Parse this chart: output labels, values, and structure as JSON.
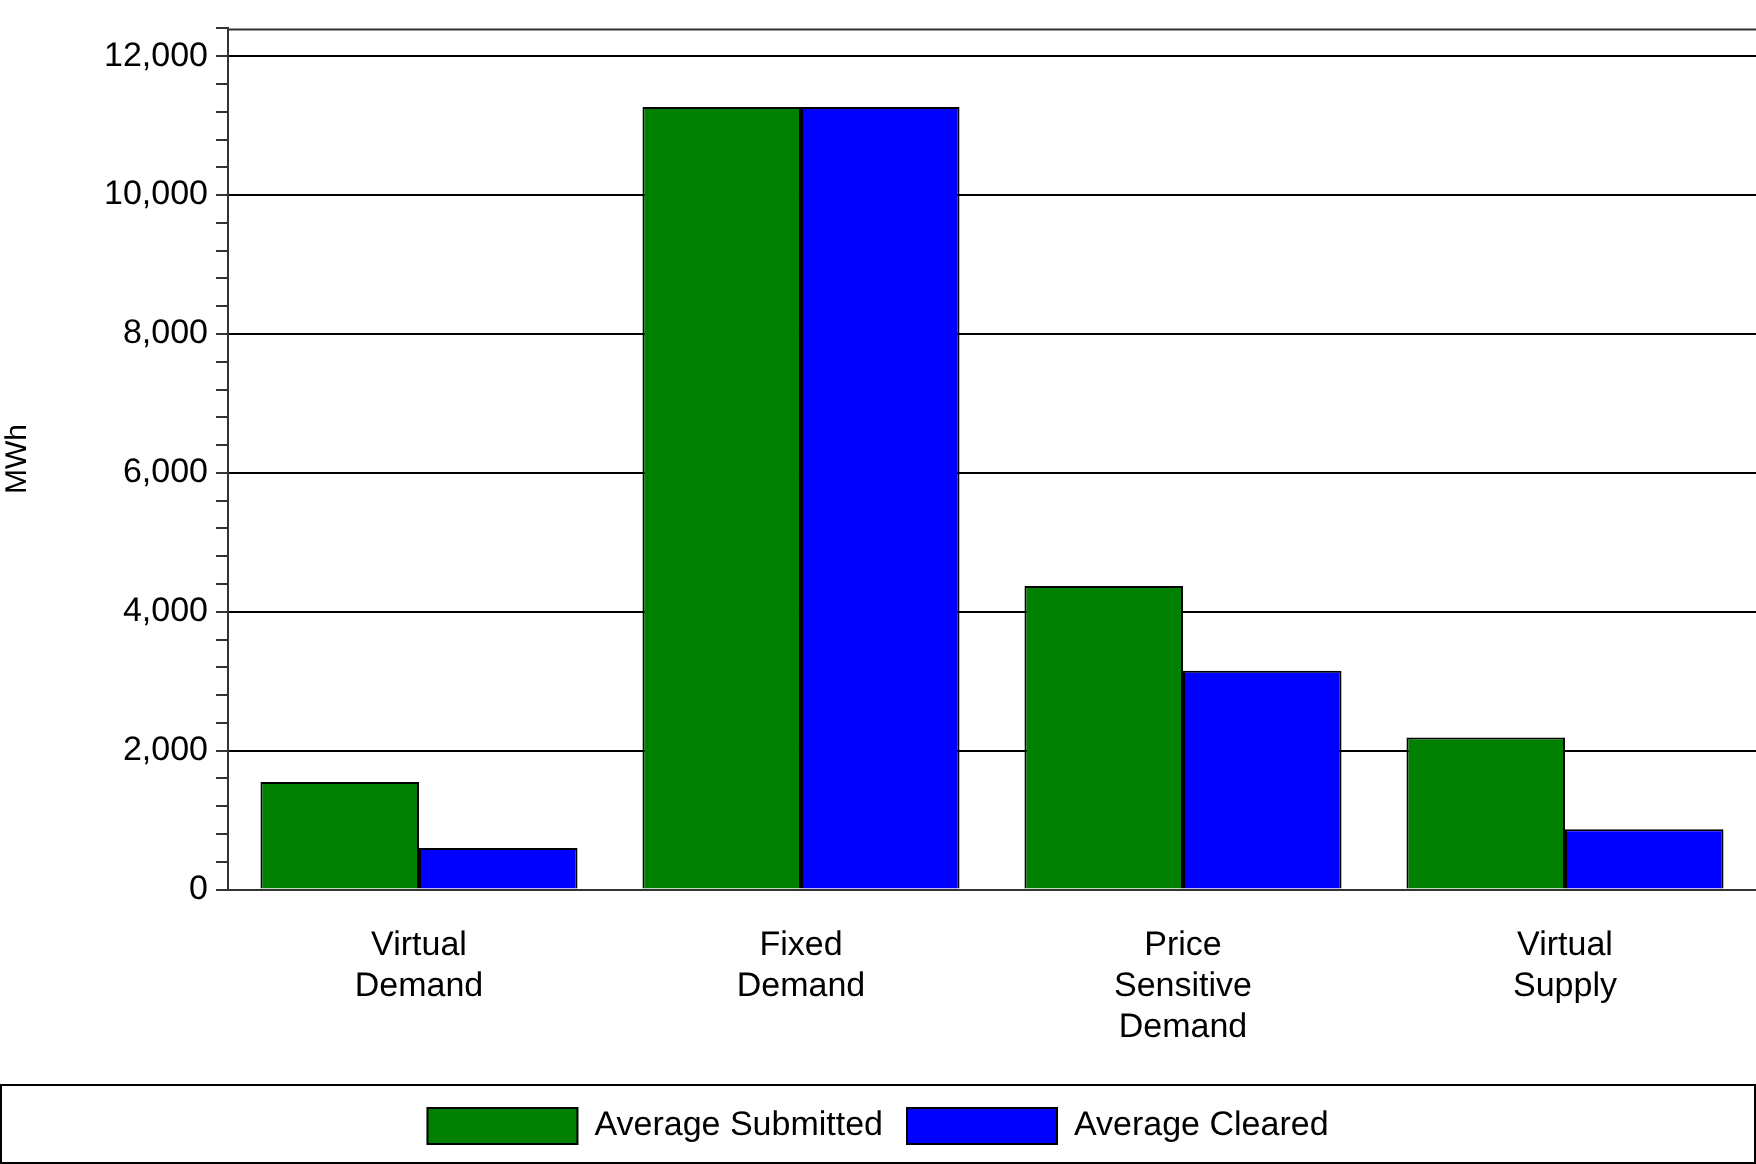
{
  "chart_data": {
    "type": "bar",
    "ylabel": "MWh",
    "categories": [
      "Virtual Demand",
      "Fixed Demand",
      "Price Sensitive Demand",
      "Virtual Supply"
    ],
    "series": [
      {
        "name": "Average Submitted",
        "color": "#008000",
        "values": [
          1550,
          11270,
          4370,
          2190
        ]
      },
      {
        "name": "Average Cleared",
        "color": "#0000ff",
        "values": [
          600,
          11270,
          3150,
          870
        ]
      }
    ],
    "ylim": [
      0,
      12400
    ],
    "yticks": [
      0,
      {
        "value": 400,
        "label": null
      },
      {
        "value": 800,
        "label": null
      },
      {
        "value": 1200,
        "label": null
      },
      {
        "value": 1600,
        "label": null
      },
      {
        "value": 2000,
        "label": "2,000"
      },
      {
        "value": 2400,
        "label": null
      },
      {
        "value": 2800,
        "label": null
      },
      {
        "value": 3200,
        "label": null
      },
      {
        "value": 3600,
        "label": null
      },
      {
        "value": 4000,
        "label": "4,000"
      },
      {
        "value": 4400,
        "label": null
      },
      {
        "value": 4800,
        "label": null
      },
      {
        "value": 5200,
        "label": null
      },
      {
        "value": 5600,
        "label": null
      },
      {
        "value": 6000,
        "label": "6,000"
      },
      {
        "value": 6400,
        "label": null
      },
      {
        "value": 6800,
        "label": null
      },
      {
        "value": 7200,
        "label": null
      },
      {
        "value": 7600,
        "label": null
      },
      {
        "value": 8000,
        "label": "8,000"
      },
      {
        "value": 8400,
        "label": null
      },
      {
        "value": 8800,
        "label": null
      },
      {
        "value": 9200,
        "label": null
      },
      {
        "value": 9600,
        "label": null
      },
      {
        "value": 10000,
        "label": "10,000"
      },
      {
        "value": 10400,
        "label": null
      },
      {
        "value": 10800,
        "label": null
      },
      {
        "value": 11200,
        "label": null
      },
      {
        "value": 11600,
        "label": null
      },
      {
        "value": 12000,
        "label": "12,000"
      },
      {
        "value": 12400,
        "label": null
      }
    ],
    "grid": "y",
    "legend": "bottom"
  }
}
